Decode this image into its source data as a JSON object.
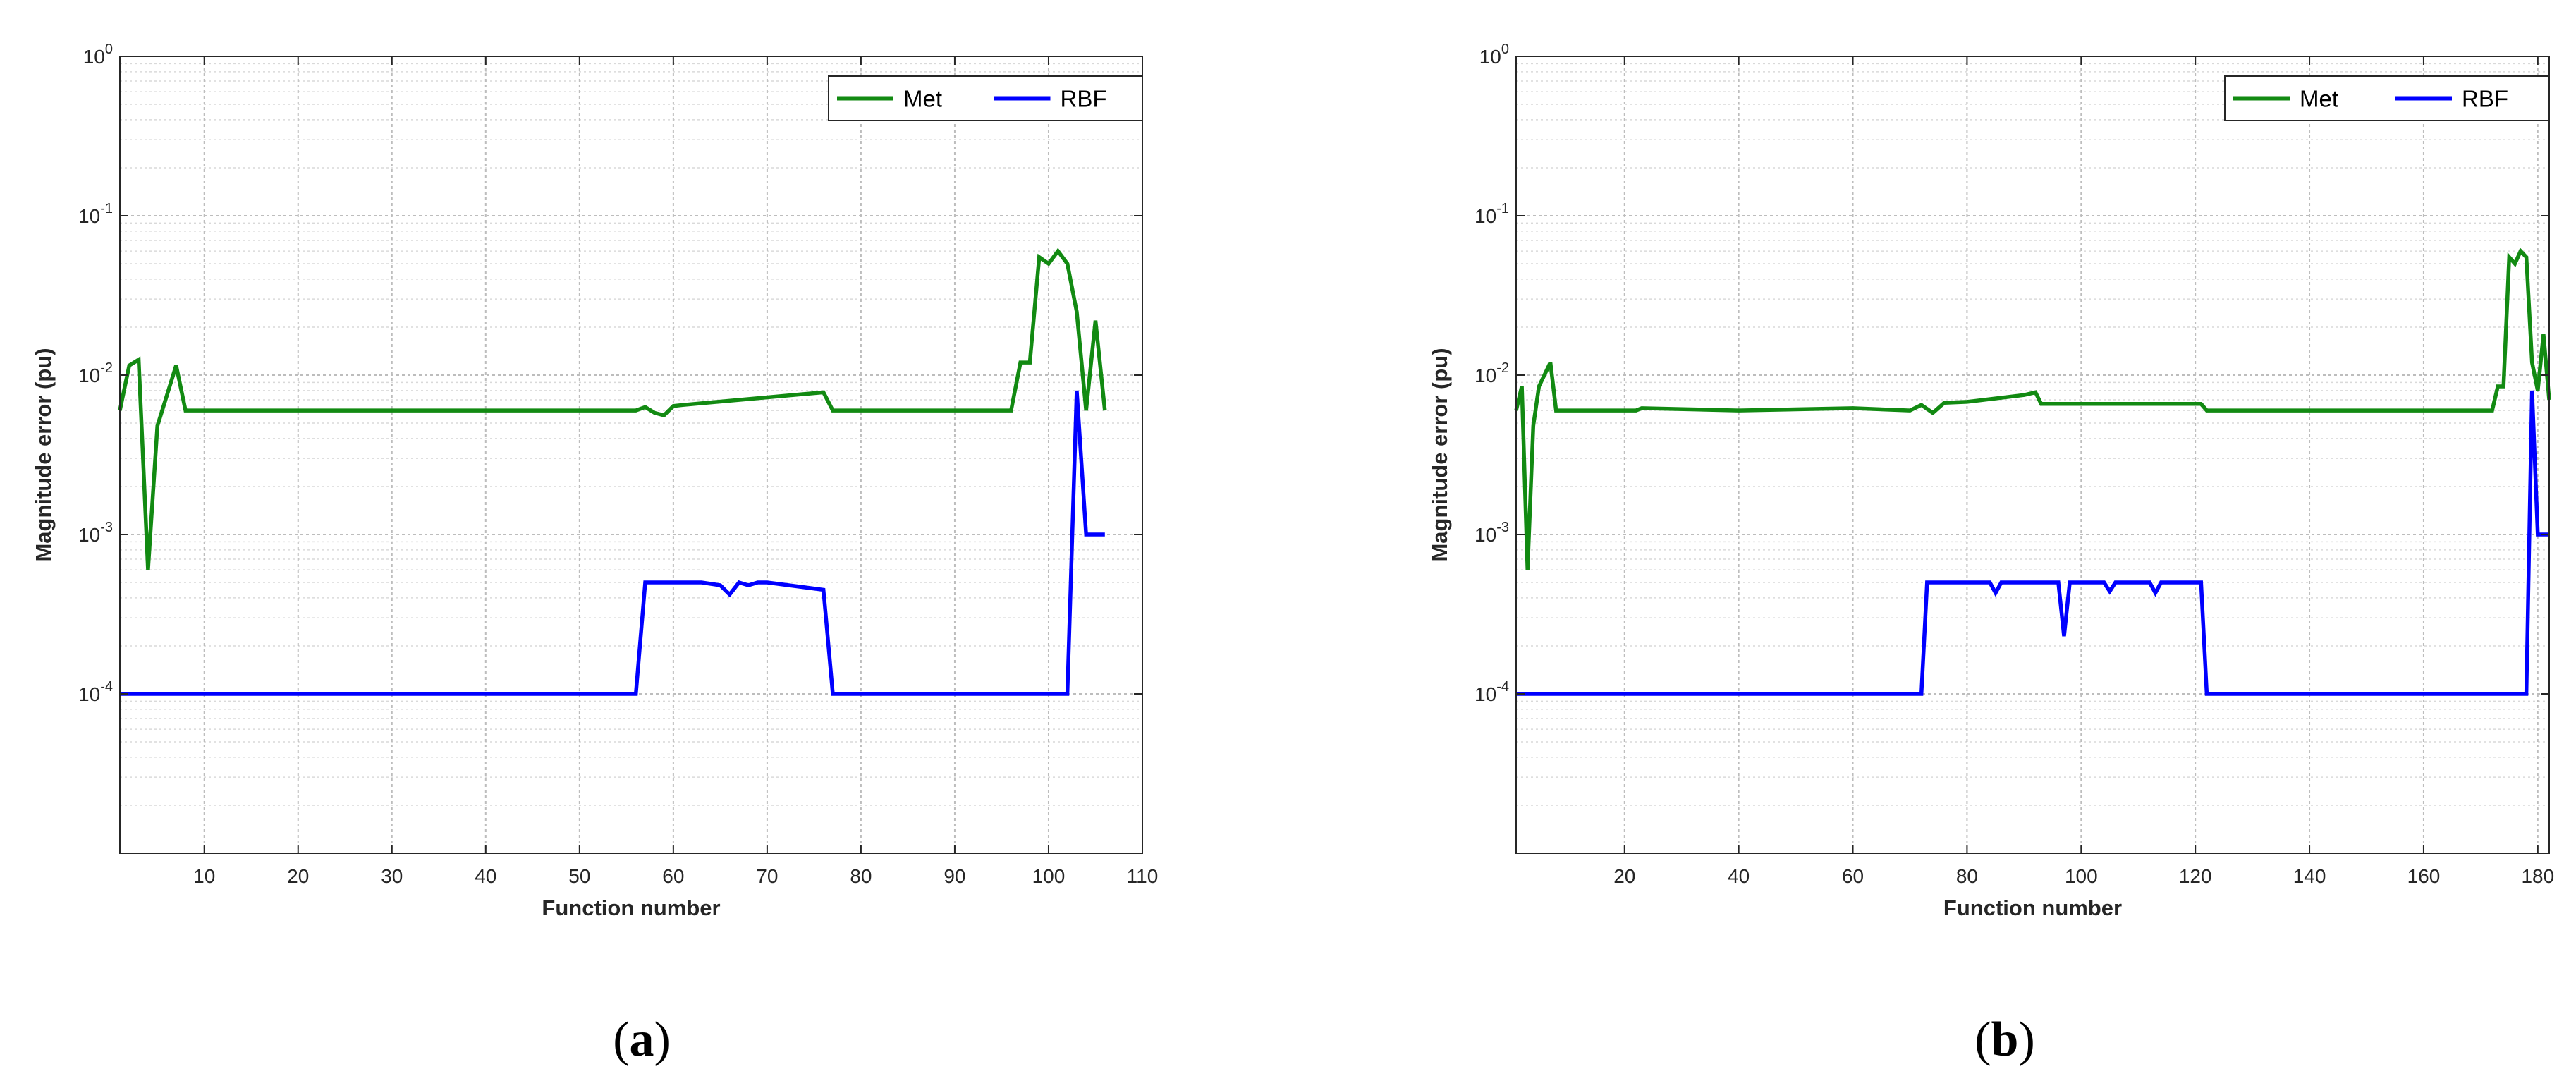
{
  "panels": [
    {
      "caption": {
        "open": "(",
        "letter": "a",
        "close": ")"
      },
      "legend": [
        "Met",
        "RBF"
      ],
      "colors": {
        "Met": "#128a12",
        "RBF": "#0000ff"
      },
      "chart_data": {
        "type": "line",
        "xlabel": "Function number",
        "ylabel": "Magnitude error (pu)",
        "xlim": [
          1,
          110
        ],
        "ylim": [
          1e-05,
          1
        ],
        "yscale": "log",
        "grid": true,
        "legend_position": "top-right",
        "xticks": [
          10,
          20,
          30,
          40,
          50,
          60,
          70,
          80,
          90,
          100,
          110
        ],
        "yticks": [
          {
            "base": "10",
            "exp": "-4",
            "value": 0.0001
          },
          {
            "base": "10",
            "exp": "-3",
            "value": 0.001
          },
          {
            "base": "10",
            "exp": "-2",
            "value": 0.01
          },
          {
            "base": "10",
            "exp": "-1",
            "value": 0.1
          },
          {
            "base": "10",
            "exp": "0",
            "value": 1
          }
        ],
        "series": [
          {
            "name": "Met",
            "x": [
              1,
              2,
              3,
              4,
              5,
              7,
              8,
              10,
              30,
              56,
              57,
              58,
              59,
              60,
              61,
              76,
              77,
              80,
              96,
              97,
              98,
              99,
              100,
              101,
              102,
              103,
              104,
              105,
              106
            ],
            "y": [
              0.006,
              0.0115,
              0.0125,
              0.0006,
              0.0048,
              0.0115,
              0.006,
              0.006,
              0.006,
              0.006,
              0.0063,
              0.0058,
              0.0056,
              0.0064,
              0.0065,
              0.0078,
              0.006,
              0.006,
              0.006,
              0.012,
              0.012,
              0.055,
              0.05,
              0.06,
              0.05,
              0.025,
              0.006,
              0.022,
              0.006
            ]
          },
          {
            "name": "RBF",
            "x": [
              1,
              56,
              57,
              60,
              63,
              65,
              66,
              67,
              68,
              69,
              70,
              76,
              77,
              102,
              103,
              104,
              106
            ],
            "y": [
              0.0001,
              0.0001,
              0.0005,
              0.0005,
              0.0005,
              0.00048,
              0.00042,
              0.0005,
              0.00048,
              0.0005,
              0.0005,
              0.00045,
              0.0001,
              0.0001,
              0.008,
              0.001,
              0.001
            ]
          }
        ]
      }
    },
    {
      "caption": {
        "open": "(",
        "letter": "b",
        "close": ")"
      },
      "legend": [
        "Met",
        "RBF"
      ],
      "colors": {
        "Met": "#128a12",
        "RBF": "#0000ff"
      },
      "chart_data": {
        "type": "line",
        "xlabel": "Function number",
        "ylabel": "Magnitude error (pu)",
        "xlim": [
          1,
          182
        ],
        "ylim": [
          1e-05,
          1
        ],
        "yscale": "log",
        "grid": true,
        "legend_position": "top-right",
        "xticks": [
          20,
          40,
          60,
          80,
          100,
          120,
          140,
          160,
          180
        ],
        "yticks": [
          {
            "base": "10",
            "exp": "-4",
            "value": 0.0001
          },
          {
            "base": "10",
            "exp": "-3",
            "value": 0.001
          },
          {
            "base": "10",
            "exp": "-2",
            "value": 0.01
          },
          {
            "base": "10",
            "exp": "-1",
            "value": 0.1
          },
          {
            "base": "10",
            "exp": "0",
            "value": 1
          }
        ],
        "series": [
          {
            "name": "Met",
            "x": [
              1,
              2,
              3,
              4,
              5,
              7,
              8,
              10,
              22,
              23,
              40,
              60,
              70,
              72,
              74,
              76,
              80,
              90,
              92,
              93,
              100,
              121,
              122,
              140,
              172,
              173,
              174,
              175,
              176,
              177,
              178,
              179,
              180,
              181,
              182
            ],
            "y": [
              0.006,
              0.0085,
              0.0006,
              0.0048,
              0.0085,
              0.012,
              0.006,
              0.006,
              0.006,
              0.0062,
              0.006,
              0.0062,
              0.006,
              0.0065,
              0.0058,
              0.0067,
              0.0068,
              0.0075,
              0.0078,
              0.0066,
              0.0066,
              0.0066,
              0.006,
              0.006,
              0.006,
              0.0085,
              0.0085,
              0.055,
              0.05,
              0.06,
              0.055,
              0.012,
              0.008,
              0.018,
              0.007
            ]
          },
          {
            "name": "RBF",
            "x": [
              1,
              72,
              73,
              84,
              85,
              86,
              96,
              97,
              98,
              104,
              105,
              106,
              112,
              113,
              114,
              121,
              122,
              178,
              179,
              180,
              182
            ],
            "y": [
              0.0001,
              0.0001,
              0.0005,
              0.0005,
              0.00043,
              0.0005,
              0.0005,
              0.00023,
              0.0005,
              0.0005,
              0.00044,
              0.0005,
              0.0005,
              0.00043,
              0.0005,
              0.0005,
              0.0001,
              0.0001,
              0.008,
              0.001,
              0.001
            ]
          }
        ]
      }
    }
  ]
}
